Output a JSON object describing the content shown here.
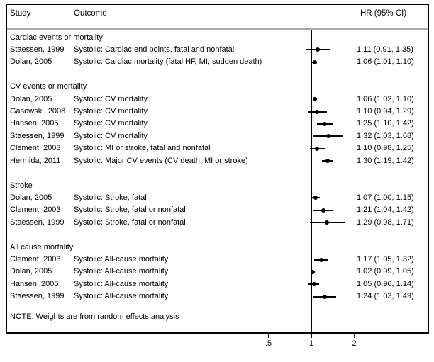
{
  "header": {
    "study": "Study",
    "outcome": "Outcome",
    "hr_ci": "HR (95% CI)"
  },
  "note": "NOTE: Weights are from random effects analysis",
  "colors": {
    "foreground": "#000000",
    "background": "#ffffff",
    "separator_line": "#aaaaaa"
  },
  "chart_data": {
    "type": "forest",
    "xscale": "log",
    "reference_line": 1,
    "xticks": [
      0.5,
      1,
      2
    ],
    "xtick_labels": [
      ".5",
      "1",
      "2"
    ],
    "xlim": [
      0.4,
      2.2
    ],
    "columns": [
      "Study",
      "Outcome",
      "HR (95% CI)"
    ],
    "rows": [
      {
        "kind": "section",
        "label": "Cardiac events or mortality"
      },
      {
        "kind": "study",
        "study": "Staessen, 1999",
        "outcome": "Systolic: Cardiac end points, fatal and nonfatal",
        "hr": 1.11,
        "lo": 0.91,
        "hi": 1.35,
        "display": "1.11 (0.91, 1.35)"
      },
      {
        "kind": "study",
        "study": "Dolan, 2005",
        "outcome": "Systolic: Cardiac mortality (fatal HF, MI, sudden death)",
        "hr": 1.06,
        "lo": 1.01,
        "hi": 1.1,
        "display": "1.06 (1.01, 1.10)"
      },
      {
        "kind": "spacer",
        "label": "."
      },
      {
        "kind": "section",
        "label": "CV events or mortality"
      },
      {
        "kind": "study",
        "study": "Dolan, 2005",
        "outcome": "Systolic: CV mortality",
        "hr": 1.06,
        "lo": 1.02,
        "hi": 1.1,
        "display": "1.06 (1.02, 1.10)"
      },
      {
        "kind": "study",
        "study": "Gasowski, 2008",
        "outcome": "Systolic: CV mortality",
        "hr": 1.1,
        "lo": 0.94,
        "hi": 1.29,
        "display": "1.10 (0.94, 1.29)"
      },
      {
        "kind": "study",
        "study": "Hansen, 2005",
        "outcome": "Systolic: CV mortality",
        "hr": 1.25,
        "lo": 1.1,
        "hi": 1.42,
        "display": "1.25 (1.10, 1.42)"
      },
      {
        "kind": "study",
        "study": "Staessen, 1999",
        "outcome": "Systolic: CV mortality",
        "hr": 1.32,
        "lo": 1.03,
        "hi": 1.68,
        "display": "1.32 (1.03, 1.68)"
      },
      {
        "kind": "study",
        "study": "Clement, 2003",
        "outcome": "Systolic: MI or stroke, fatal and nonfatal",
        "hr": 1.1,
        "lo": 0.98,
        "hi": 1.25,
        "display": "1.10 (0.98, 1.25)"
      },
      {
        "kind": "study",
        "study": "Hermida, 2011",
        "outcome": "Systolic: Major CV events (CV death, MI or stroke)",
        "hr": 1.3,
        "lo": 1.19,
        "hi": 1.42,
        "display": "1.30 (1.19, 1.42)"
      },
      {
        "kind": "spacer",
        "label": "."
      },
      {
        "kind": "section",
        "label": "Stroke"
      },
      {
        "kind": "study",
        "study": "Dolan, 2005",
        "outcome": "Systolic: Stroke, fatal",
        "hr": 1.07,
        "lo": 1.0,
        "hi": 1.15,
        "display": "1.07 (1.00, 1.15)"
      },
      {
        "kind": "study",
        "study": "Clement, 2003",
        "outcome": "Systolic: Stroke, fatal or nonfatal",
        "hr": 1.21,
        "lo": 1.04,
        "hi": 1.42,
        "display": "1.21 (1.04, 1.42)"
      },
      {
        "kind": "study",
        "study": "Staessen, 1999",
        "outcome": "Systolic: Stroke, fatal or nonfatal",
        "hr": 1.29,
        "lo": 0.98,
        "hi": 1.71,
        "display": "1.29 (0.98, 1.71)"
      },
      {
        "kind": "spacer",
        "label": "."
      },
      {
        "kind": "section",
        "label": "All cause mortality"
      },
      {
        "kind": "study",
        "study": "Clement, 2003",
        "outcome": "Systolic: All-cause mortality",
        "hr": 1.17,
        "lo": 1.05,
        "hi": 1.32,
        "display": "1.17 (1.05, 1.32)"
      },
      {
        "kind": "study",
        "study": "Dolan, 2005",
        "outcome": "Systolic: All-cause mortality",
        "hr": 1.02,
        "lo": 0.99,
        "hi": 1.05,
        "display": "1.02 (0.99, 1.05)"
      },
      {
        "kind": "study",
        "study": "Hansen, 2005",
        "outcome": "Systolic: All-cause mortality",
        "hr": 1.05,
        "lo": 0.96,
        "hi": 1.14,
        "display": "1.05 (0.96, 1.14)"
      },
      {
        "kind": "study",
        "study": "Staessen, 1999",
        "outcome": "Systolic: All-cause mortality",
        "hr": 1.24,
        "lo": 1.03,
        "hi": 1.49,
        "display": "1.24 (1.03, 1.49)"
      }
    ]
  }
}
